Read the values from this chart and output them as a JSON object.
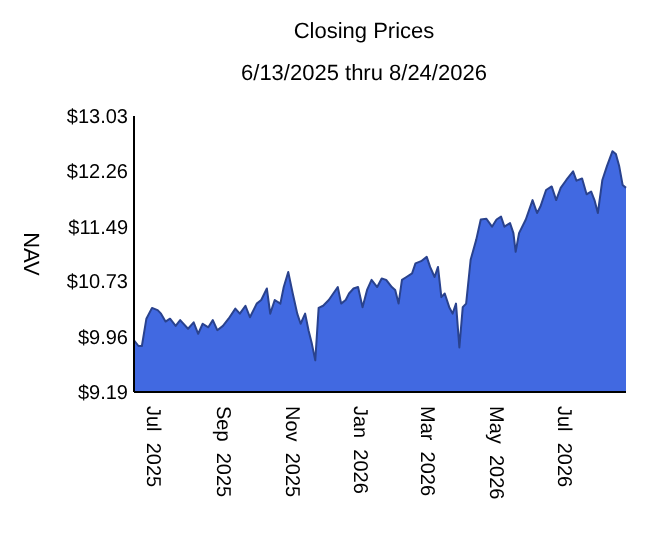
{
  "chart_data": {
    "type": "area",
    "title": "Closing Prices",
    "subtitle": "6/13/2025 thru 8/24/2026",
    "ylabel": "NAV",
    "x": [
      "2025-06-13",
      "2025-06-17",
      "2025-06-20",
      "2025-06-24",
      "2025-06-29",
      "2025-07-04",
      "2025-07-07",
      "2025-07-11",
      "2025-07-15",
      "2025-07-20",
      "2025-07-24",
      "2025-07-31",
      "2025-08-05",
      "2025-08-09",
      "2025-08-13",
      "2025-08-18",
      "2025-08-22",
      "2025-08-26",
      "2025-08-31",
      "2025-09-05",
      "2025-09-11",
      "2025-09-15",
      "2025-09-20",
      "2025-09-24",
      "2025-09-30",
      "2025-10-04",
      "2025-10-09",
      "2025-10-12",
      "2025-10-16",
      "2025-10-21",
      "2025-10-24",
      "2025-10-28",
      "2025-11-01",
      "2025-11-05",
      "2025-11-08",
      "2025-11-12",
      "2025-11-15",
      "2025-11-18",
      "2025-11-21",
      "2025-11-24",
      "2025-11-28",
      "2025-12-03",
      "2025-12-07",
      "2025-12-11",
      "2025-12-14",
      "2025-12-18",
      "2025-12-21",
      "2025-12-25",
      "2025-12-29",
      "2026-01-02",
      "2026-01-06",
      "2026-01-10",
      "2026-01-15",
      "2026-01-19",
      "2026-01-23",
      "2026-01-28",
      "2026-01-31",
      "2026-02-03",
      "2026-02-06",
      "2026-02-10",
      "2026-02-15",
      "2026-02-18",
      "2026-02-23",
      "2026-02-28",
      "2026-03-03",
      "2026-03-07",
      "2026-03-10",
      "2026-03-13",
      "2026-03-16",
      "2026-03-20",
      "2026-03-23",
      "2026-03-26",
      "2026-03-29",
      "2026-04-01",
      "2026-04-04",
      "2026-04-08",
      "2026-04-13",
      "2026-04-17",
      "2026-04-22",
      "2026-04-27",
      "2026-05-01",
      "2026-05-05",
      "2026-05-08",
      "2026-05-13",
      "2026-05-16",
      "2026-05-18",
      "2026-05-21",
      "2026-05-27",
      "2026-06-02",
      "2026-06-06",
      "2026-06-09",
      "2026-06-14",
      "2026-06-19",
      "2026-06-23",
      "2026-06-27",
      "2026-07-02",
      "2026-07-08",
      "2026-07-11",
      "2026-07-16",
      "2026-07-20",
      "2026-07-24",
      "2026-07-27",
      "2026-07-30",
      "2026-08-03",
      "2026-08-07",
      "2026-08-12",
      "2026-08-15",
      "2026-08-18",
      "2026-08-21",
      "2026-08-24"
    ],
    "series": [
      {
        "color": "#4169e1",
        "values": [
          9.91,
          9.83,
          9.83,
          10.21,
          10.36,
          10.33,
          10.28,
          10.17,
          10.21,
          10.11,
          10.19,
          10.07,
          10.16,
          10.0,
          10.14,
          10.09,
          10.19,
          10.05,
          10.11,
          10.21,
          10.35,
          10.28,
          10.39,
          10.23,
          10.42,
          10.47,
          10.63,
          10.28,
          10.47,
          10.42,
          10.65,
          10.86,
          10.56,
          10.28,
          10.14,
          10.28,
          10.05,
          9.86,
          9.63,
          10.36,
          10.39,
          10.47,
          10.56,
          10.65,
          10.42,
          10.47,
          10.56,
          10.63,
          10.65,
          10.37,
          10.61,
          10.75,
          10.65,
          10.77,
          10.75,
          10.65,
          10.61,
          10.42,
          10.75,
          10.79,
          10.84,
          10.98,
          11.01,
          11.07,
          10.93,
          10.79,
          10.93,
          10.51,
          10.56,
          10.37,
          10.28,
          10.42,
          9.81,
          10.37,
          10.42,
          11.03,
          11.31,
          11.59,
          11.6,
          11.49,
          11.59,
          11.63,
          11.49,
          11.54,
          11.4,
          11.14,
          11.4,
          11.59,
          11.86,
          11.68,
          11.77,
          12.0,
          12.05,
          11.86,
          12.03,
          12.14,
          12.26,
          12.13,
          12.16,
          11.94,
          11.98,
          11.86,
          11.68,
          12.14,
          12.33,
          12.54,
          12.5,
          12.33,
          12.07,
          12.03
        ]
      }
    ],
    "xlim": [
      "2025-06-13",
      "2026-08-24"
    ],
    "xticks": [
      {
        "value": "2025-07-01",
        "label": "Jul 2025"
      },
      {
        "value": "2025-09-01",
        "label": "Sep 2025"
      },
      {
        "value": "2025-11-01",
        "label": "Nov 2025"
      },
      {
        "value": "2026-01-01",
        "label": "Jan 2026"
      },
      {
        "value": "2026-03-01",
        "label": "Mar 2026"
      },
      {
        "value": "2026-05-01",
        "label": "May 2026"
      },
      {
        "value": "2026-07-01",
        "label": "Jul 2026"
      }
    ],
    "ylim": [
      9.19,
      13.03
    ],
    "yticks": [
      {
        "value": 9.19,
        "label": "$9.19"
      },
      {
        "value": 9.96,
        "label": "$9.96"
      },
      {
        "value": 10.73,
        "label": "$10.73"
      },
      {
        "value": 11.49,
        "label": "$11.49"
      },
      {
        "value": 12.26,
        "label": "$12.26"
      },
      {
        "value": 13.03,
        "label": "$13.03"
      }
    ],
    "grid": false
  }
}
